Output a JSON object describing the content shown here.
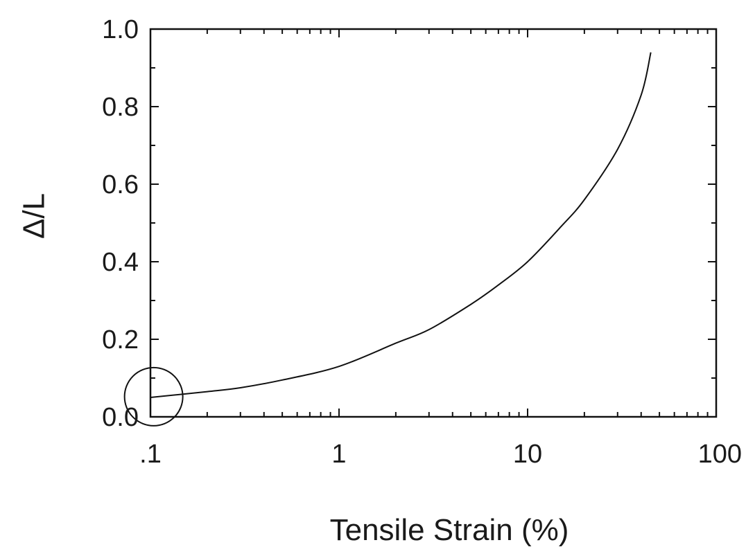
{
  "chart_data": {
    "type": "line",
    "title": "",
    "xlabel": "Tensile Strain (%)",
    "ylabel": "Δ/L",
    "x_scale": "log",
    "xlim": [
      0.1,
      100
    ],
    "ylim": [
      0.0,
      1.0
    ],
    "x_ticks": [
      0.1,
      1,
      10,
      100
    ],
    "x_tick_labels": [
      ".1",
      "1",
      "10",
      "100"
    ],
    "y_ticks": [
      0.0,
      0.2,
      0.4,
      0.6,
      0.8,
      1.0
    ],
    "y_tick_labels": [
      "0.0",
      "0.2",
      "0.4",
      "0.6",
      "0.8",
      "1.0"
    ],
    "grid": false,
    "legend": "none",
    "series": [
      {
        "x": [
          0.1,
          0.2,
          0.3,
          0.5,
          1,
          2,
          3,
          5,
          7,
          10,
          15,
          20,
          30,
          40,
          45
        ],
        "y": [
          0.05,
          0.065,
          0.075,
          0.095,
          0.13,
          0.19,
          0.225,
          0.29,
          0.34,
          0.4,
          0.49,
          0.56,
          0.69,
          0.83,
          0.94
        ]
      }
    ],
    "annotations": [
      {
        "type": "circle",
        "x": 0.104,
        "y": 0.052,
        "meaning": "marked region near origin"
      }
    ],
    "colors": {
      "line": "#111111",
      "axis": "#111111",
      "background": "#ffffff"
    }
  }
}
